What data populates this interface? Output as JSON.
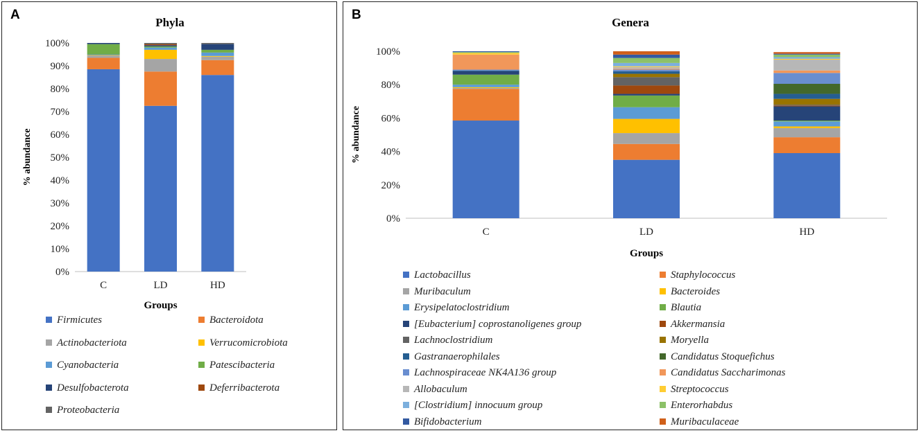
{
  "chart_data": [
    {
      "panel": "A",
      "type": "bar",
      "stacked": true,
      "title": "Phyla",
      "xlabel": "Groups",
      "ylabel": "% abundance",
      "categories": [
        "C",
        "LD",
        "HD"
      ],
      "ylim": [
        0,
        100
      ],
      "yticks": [
        "0%",
        "10%",
        "20%",
        "30%",
        "40%",
        "50%",
        "60%",
        "70%",
        "80%",
        "90%",
        "100%"
      ],
      "legend_position": "bottom",
      "series": [
        {
          "name": "Firmicutes",
          "color": "#4472C4",
          "values": [
            88.5,
            72.5,
            86
          ]
        },
        {
          "name": "Bacteroidota",
          "color": "#ED7D31",
          "values": [
            5,
            15,
            6.5
          ]
        },
        {
          "name": "Actinobacteriota",
          "color": "#A5A5A5",
          "values": [
            1,
            5.5,
            1.5
          ]
        },
        {
          "name": "Verrucomicrobiota",
          "color": "#FFC000",
          "values": [
            0.2,
            4,
            0.3
          ]
        },
        {
          "name": "Cyanobacteria",
          "color": "#5B9BD5",
          "values": [
            0.3,
            1,
            1.5
          ]
        },
        {
          "name": "Patescibacteria",
          "color": "#70AD47",
          "values": [
            4.5,
            0.5,
            1.2
          ]
        },
        {
          "name": "Desulfobacterota",
          "color": "#264478",
          "values": [
            0.5,
            0.5,
            2.5
          ]
        },
        {
          "name": "Deferribacterota",
          "color": "#9E480E",
          "values": [
            0,
            0.5,
            0
          ]
        },
        {
          "name": "Proteobacteria",
          "color": "#636363",
          "values": [
            0,
            0.5,
            0.5
          ]
        }
      ]
    },
    {
      "panel": "B",
      "type": "bar",
      "stacked": true,
      "title": "Genera",
      "xlabel": "Groups",
      "ylabel": "% abundance",
      "categories": [
        "C",
        "LD",
        "HD"
      ],
      "ylim": [
        0,
        100
      ],
      "yticks": [
        "0%",
        "20%",
        "40%",
        "60%",
        "80%",
        "100%"
      ],
      "legend_position": "bottom",
      "series": [
        {
          "name": "Lactobacillus",
          "color": "#4472C4",
          "values": [
            58.5,
            35,
            39
          ]
        },
        {
          "name": "Staphylococcus",
          "color": "#ED7D31",
          "values": [
            19,
            9.5,
            9.5
          ]
        },
        {
          "name": "Muribaculum",
          "color": "#A5A5A5",
          "values": [
            0.5,
            6.5,
            5.5
          ]
        },
        {
          "name": "Bacteroides",
          "color": "#FFC000",
          "values": [
            0.5,
            8.5,
            1
          ]
        },
        {
          "name": "Erysipelatoclostridium",
          "color": "#5B9BD5",
          "values": [
            1.5,
            7,
            3
          ]
        },
        {
          "name": "Blautia",
          "color": "#70AD47",
          "values": [
            6,
            7,
            0.5
          ]
        },
        {
          "name": "[Eubacterium] coprostanoligenes group",
          "color": "#264478",
          "values": [
            2,
            1,
            8.5
          ]
        },
        {
          "name": "Akkermansia",
          "color": "#9E480E",
          "values": [
            0,
            5,
            0.5
          ]
        },
        {
          "name": "Lachnoclostridium",
          "color": "#636363",
          "values": [
            0,
            5,
            0.5
          ]
        },
        {
          "name": "Moryella",
          "color": "#997300",
          "values": [
            0,
            2,
            3.5
          ]
        },
        {
          "name": "Gastranaerophilales",
          "color": "#255E91",
          "values": [
            0.5,
            1.5,
            3
          ]
        },
        {
          "name": "Candidatus Stoquefichus",
          "color": "#43682B",
          "values": [
            0,
            0,
            6
          ]
        },
        {
          "name": "Lachnospiraceae NK4A136 group",
          "color": "#698ED0",
          "values": [
            0.5,
            1,
            6.5
          ]
        },
        {
          "name": "Candidatus Saccharimonas",
          "color": "#F1975A",
          "values": [
            9,
            0.5,
            1.5
          ]
        },
        {
          "name": "Allobaculum",
          "color": "#B7B7B7",
          "values": [
            0,
            1,
            6.5
          ]
        },
        {
          "name": "Streptococcus",
          "color": "#FFCD33",
          "values": [
            1,
            0.5,
            0.5
          ]
        },
        {
          "name": "[Clostridium] innocuum group",
          "color": "#7CAFDD",
          "values": [
            0,
            2,
            1
          ]
        },
        {
          "name": "Enterorhabdus",
          "color": "#8CC168",
          "values": [
            0.5,
            3,
            1.5
          ]
        },
        {
          "name": "Bifidobacterium",
          "color": "#335AA1",
          "values": [
            0.5,
            2,
            0.5
          ]
        },
        {
          "name": "Muribaculaceae",
          "color": "#D0601A",
          "values": [
            0,
            2,
            1
          ]
        }
      ]
    }
  ]
}
